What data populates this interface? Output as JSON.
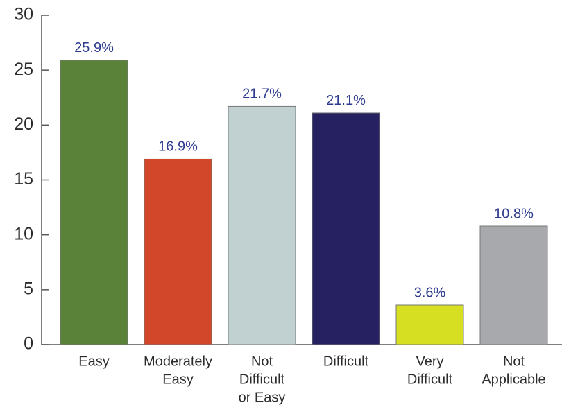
{
  "chart_data": {
    "type": "bar",
    "categories": [
      [
        "Easy"
      ],
      [
        "Moderately",
        "Easy"
      ],
      [
        "Not",
        "Difficult",
        "or Easy"
      ],
      [
        "Difficult"
      ],
      [
        "Very",
        "Difficult"
      ],
      [
        "Not",
        "Applicable"
      ]
    ],
    "values": [
      25.9,
      16.9,
      21.7,
      21.1,
      3.6,
      10.8
    ],
    "value_labels": [
      "25.9%",
      "16.9%",
      "21.7%",
      "21.1%",
      "3.6%",
      "10.8%"
    ],
    "colors": [
      "#5a8238",
      "#d2462a",
      "#c1d1d1",
      "#262262",
      "#d7df23",
      "#a7a9ac"
    ],
    "ylim": [
      0,
      30
    ],
    "yticks": [
      0,
      5,
      10,
      15,
      20,
      25,
      30
    ],
    "grid": false
  }
}
